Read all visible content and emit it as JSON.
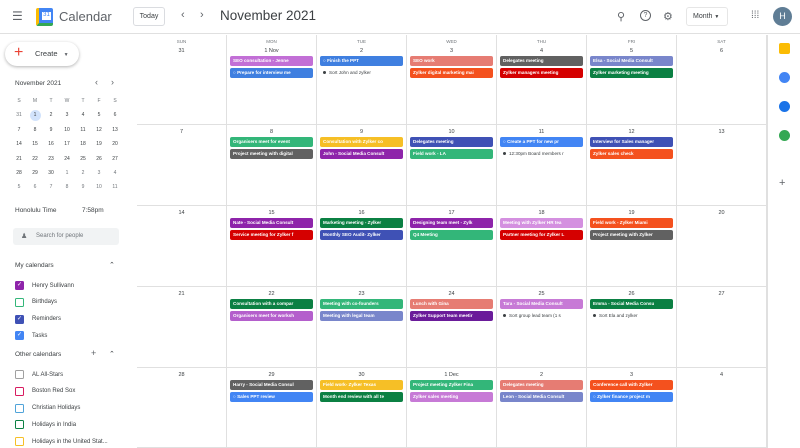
{
  "header": {
    "app_title": "Calendar",
    "today_label": "Today",
    "month_title": "November 2021",
    "view": "Month",
    "avatar_initial": "H",
    "icons": [
      "menu-icon",
      "search-icon",
      "help-icon",
      "settings-icon",
      "apps-grid-icon"
    ]
  },
  "sidebar": {
    "create_label": "Create",
    "mini_title": "November 2021",
    "weekdays": [
      "S",
      "M",
      "T",
      "W",
      "T",
      "F",
      "S"
    ],
    "mini_rows": [
      [
        "31",
        "1",
        "2",
        "3",
        "4",
        "5",
        "6"
      ],
      [
        "7",
        "8",
        "9",
        "10",
        "11",
        "12",
        "13"
      ],
      [
        "14",
        "15",
        "16",
        "17",
        "18",
        "19",
        "20"
      ],
      [
        "21",
        "22",
        "23",
        "24",
        "25",
        "26",
        "27"
      ],
      [
        "28",
        "29",
        "30",
        "1",
        "2",
        "3",
        "4"
      ],
      [
        "5",
        "6",
        "7",
        "8",
        "9",
        "10",
        "11"
      ]
    ],
    "mini_selected": "1",
    "timezone_label": "Honolulu Time",
    "timezone_value": "7:58pm",
    "search_placeholder": "Search for people",
    "my_calendars_title": "My calendars",
    "my_calendars": [
      {
        "label": "Henry Sullivann",
        "color": "#8e24aa",
        "checked": true
      },
      {
        "label": "Birthdays",
        "color": "#33b679",
        "checked": false
      },
      {
        "label": "Reminders",
        "color": "#3f51b5",
        "checked": true
      },
      {
        "label": "Tasks",
        "color": "#4285f4",
        "checked": true
      }
    ],
    "other_calendars_title": "Other calendars",
    "other_calendars": [
      {
        "label": "AL All-Stars",
        "color": "#a0a0a0"
      },
      {
        "label": "Boston Red Sox",
        "color": "#d81b60"
      },
      {
        "label": "Christian Holidays",
        "color": "#4fa3d9"
      },
      {
        "label": "Holidays in India",
        "color": "#0b8043"
      },
      {
        "label": "Holidays in the United Stat...",
        "color": "#f6bf26"
      }
    ]
  },
  "grid": {
    "day_names": [
      "SUN",
      "MON",
      "TUE",
      "WED",
      "THU",
      "FRI",
      "SAT"
    ],
    "weeks": [
      [
        {
          "date": "31",
          "events": []
        },
        {
          "date": "1 Nov",
          "events": [
            {
              "text": "SEO consultation - Jenne",
              "color": "#c26fd6",
              "type": "chip"
            },
            {
              "text": "Prepare for interview me",
              "color": "#3f7fe0",
              "type": "task"
            }
          ]
        },
        {
          "date": "2",
          "events": [
            {
              "text": "Finish the PPT",
              "color": "#3f7fe0",
              "type": "task"
            },
            {
              "text": "Sort John and zylker",
              "color": "",
              "type": "dot"
            }
          ]
        },
        {
          "date": "3",
          "events": [
            {
              "text": "SEO work",
              "color": "#e67c73",
              "type": "chip"
            },
            {
              "text": "Zylker digital marketing mai",
              "color": "#f4511e",
              "type": "chip"
            }
          ]
        },
        {
          "date": "4",
          "events": [
            {
              "text": "Delegates meeting",
              "color": "#616161",
              "type": "chip"
            },
            {
              "text": "Zylker managers meeting",
              "color": "#d50000",
              "type": "chip"
            }
          ]
        },
        {
          "date": "5",
          "events": [
            {
              "text": "Elsa - Social Media Consult",
              "color": "#7986cb",
              "type": "chip"
            },
            {
              "text": "Zylker marketing meeting",
              "color": "#0b8043",
              "type": "chip"
            }
          ]
        },
        {
          "date": "6",
          "events": []
        }
      ],
      [
        {
          "date": "7",
          "events": []
        },
        {
          "date": "8",
          "events": [
            {
              "text": "Organisers meet for event",
              "color": "#33b679",
              "type": "chip"
            },
            {
              "text": "Project meeting with digital",
              "color": "#616161",
              "type": "chip"
            }
          ]
        },
        {
          "date": "9",
          "events": [
            {
              "text": "Consultation with Zylker co",
              "color": "#f6bf26",
              "type": "chip"
            },
            {
              "text": "John - Social Media Consult",
              "color": "#8e24aa",
              "type": "chip"
            }
          ]
        },
        {
          "date": "10",
          "events": [
            {
              "text": "Delegates meeting",
              "color": "#3f51b5",
              "type": "chip"
            },
            {
              "text": "Field work - LA",
              "color": "#33b679",
              "type": "chip"
            }
          ]
        },
        {
          "date": "11",
          "events": [
            {
              "text": "Create a PPT for new pr",
              "color": "#4285f4",
              "type": "task"
            },
            {
              "text": "12:30pm Board members r",
              "color": "",
              "type": "dot"
            }
          ]
        },
        {
          "date": "12",
          "events": [
            {
              "text": "Interview for Sales manager",
              "color": "#3f51b5",
              "type": "chip"
            },
            {
              "text": "Zylker sales check",
              "color": "#f4511e",
              "type": "chip"
            }
          ]
        },
        {
          "date": "13",
          "events": []
        }
      ],
      [
        {
          "date": "14",
          "events": []
        },
        {
          "date": "15",
          "events": [
            {
              "text": "Nate - Social Media Consult",
              "color": "#8e24aa",
              "type": "chip"
            },
            {
              "text": "Service meeting for Zylker f",
              "color": "#d50000",
              "type": "chip"
            }
          ]
        },
        {
          "date": "16",
          "events": [
            {
              "text": "Marketing meeting - Zylker",
              "color": "#0b8043",
              "type": "chip"
            },
            {
              "text": "Monthly SEO Audit- Zylker",
              "color": "#3f51b5",
              "type": "chip"
            }
          ]
        },
        {
          "date": "17",
          "events": [
            {
              "text": "Designing team meet - Zylk",
              "color": "#8e24aa",
              "type": "chip"
            },
            {
              "text": "Q4 Meeting",
              "color": "#33b679",
              "type": "chip"
            }
          ]
        },
        {
          "date": "18",
          "events": [
            {
              "text": "Meeting with Zylker HR tea",
              "color": "#d490e0",
              "type": "chip"
            },
            {
              "text": "Partner meeting for Zylker L",
              "color": "#d50000",
              "type": "chip"
            }
          ]
        },
        {
          "date": "19",
          "events": [
            {
              "text": "Field work - Zylker Miami",
              "color": "#f4511e",
              "type": "chip"
            },
            {
              "text": "Project meeting with Zylker",
              "color": "#616161",
              "type": "chip"
            }
          ]
        },
        {
          "date": "20",
          "events": []
        }
      ],
      [
        {
          "date": "21",
          "events": []
        },
        {
          "date": "22",
          "events": [
            {
              "text": "Consultation with a compar",
              "color": "#0b8043",
              "type": "chip"
            },
            {
              "text": "Organisers meet for worksh",
              "color": "#b45fcc",
              "type": "chip"
            }
          ]
        },
        {
          "date": "23",
          "events": [
            {
              "text": "Meeting with co-founders",
              "color": "#33b679",
              "type": "chip"
            },
            {
              "text": "Meeting with legal team",
              "color": "#7986cb",
              "type": "chip"
            }
          ]
        },
        {
          "date": "24",
          "events": [
            {
              "text": "Lunch with Gina",
              "color": "#e67c73",
              "type": "chip"
            },
            {
              "text": "Zylker Support team meetir",
              "color": "#6a1b9a",
              "type": "chip"
            }
          ]
        },
        {
          "date": "25",
          "events": [
            {
              "text": "Tara - Social Media Consult",
              "color": "#c77ad6",
              "type": "chip"
            },
            {
              "text": "Sort group lead team (1 s",
              "color": "",
              "type": "dot"
            }
          ]
        },
        {
          "date": "26",
          "events": [
            {
              "text": "Emma - Social Media Consu",
              "color": "#0b8043",
              "type": "chip"
            },
            {
              "text": "Sort Ela and zylker",
              "color": "",
              "type": "dot"
            }
          ]
        },
        {
          "date": "27",
          "events": []
        }
      ],
      [
        {
          "date": "28",
          "events": []
        },
        {
          "date": "29",
          "events": [
            {
              "text": "Harry - Social Media Consul",
              "color": "#616161",
              "type": "chip"
            },
            {
              "text": "Sales PPT review",
              "color": "#4285f4",
              "type": "task"
            }
          ]
        },
        {
          "date": "30",
          "events": [
            {
              "text": "Field work- Zylker Texas",
              "color": "#f6bf26",
              "type": "chip"
            },
            {
              "text": "Month end review with all te",
              "color": "#0b8043",
              "type": "chip"
            }
          ]
        },
        {
          "date": "1 Dec",
          "events": [
            {
              "text": "Project meeting Zylker Fina",
              "color": "#33b679",
              "type": "chip"
            },
            {
              "text": "Zylker sales meeting",
              "color": "#c77ad6",
              "type": "chip"
            }
          ]
        },
        {
          "date": "2",
          "events": [
            {
              "text": "Delegates meeting",
              "color": "#e67c73",
              "type": "chip"
            },
            {
              "text": "Leon - Social Media Consult",
              "color": "#7986cb",
              "type": "chip"
            }
          ]
        },
        {
          "date": "3",
          "events": [
            {
              "text": "Conference call with Zylker",
              "color": "#f4511e",
              "type": "chip"
            },
            {
              "text": "Zylker finance project m",
              "color": "#4285f4",
              "type": "task"
            }
          ]
        },
        {
          "date": "4",
          "events": []
        }
      ]
    ]
  },
  "right_panel": {
    "icons": [
      {
        "name": "keep-icon",
        "color": "#fbbc04"
      },
      {
        "name": "tasks-icon",
        "color": "#4285f4"
      },
      {
        "name": "contacts-icon",
        "color": "#1a73e8"
      },
      {
        "name": "maps-icon",
        "color": "#34a853"
      }
    ]
  }
}
